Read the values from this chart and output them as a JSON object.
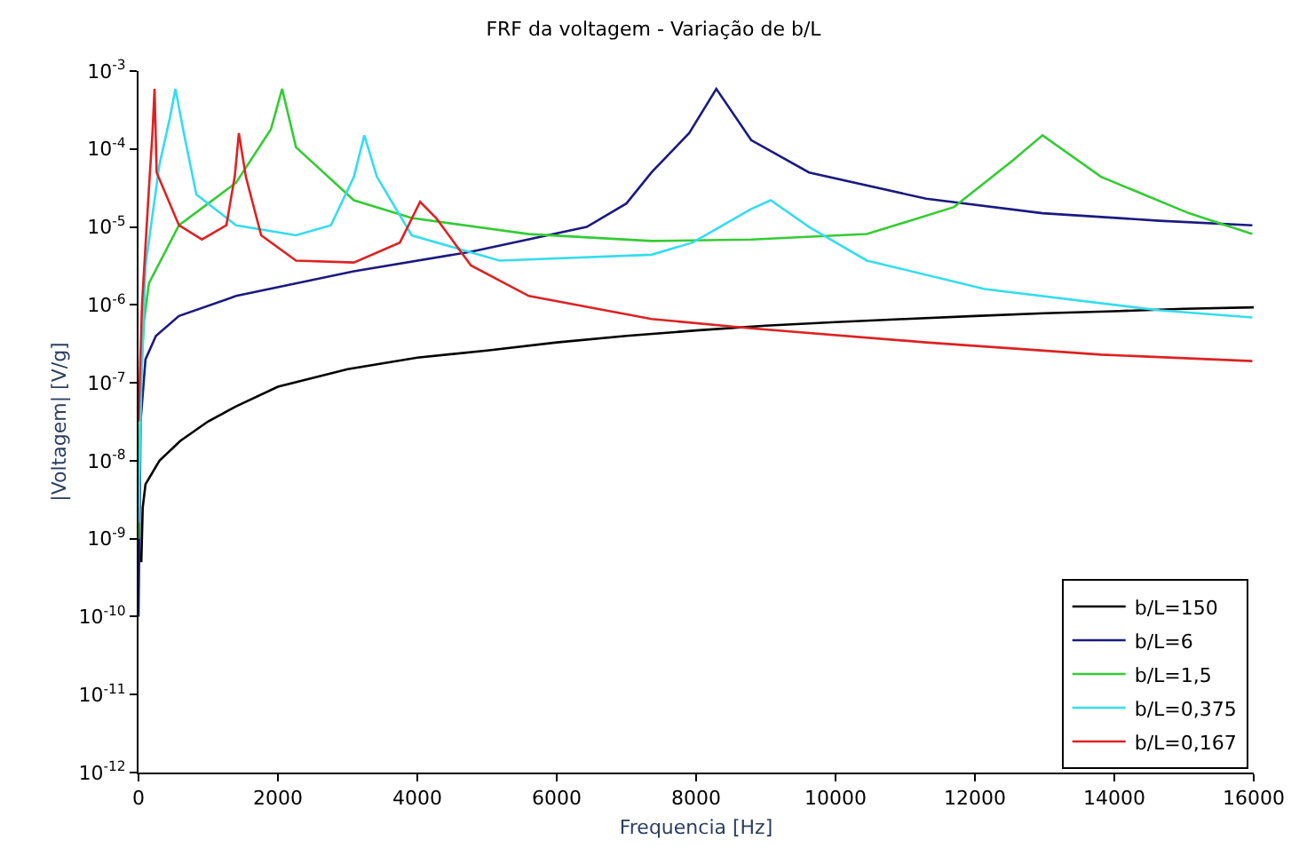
{
  "chart_data": {
    "type": "line",
    "title": "FRF da voltagem - Variação de b/L",
    "xlabel": "Frequencia [Hz]",
    "ylabel": "|Voltagem| [V/g]",
    "log": "y",
    "grid": false,
    "legend": "bottom right",
    "line_style": "solid",
    "marker": "none",
    "xlim": [
      0,
      16000
    ],
    "xticks": [
      0,
      2000,
      4000,
      6000,
      8000,
      10000,
      12000,
      14000,
      16000
    ],
    "ylim": [
      1e-12,
      0.001
    ],
    "yticks": [
      {
        "value": 1e-12,
        "label": "10$^{-12}$"
      },
      {
        "value": 1e-11,
        "label": "10$^{-11}$"
      },
      {
        "value": 1e-10,
        "label": "10$^{-10}$"
      },
      {
        "value": 1e-09,
        "label": "10$^{-9}$"
      },
      {
        "value": 1e-08,
        "label": "10$^{-8}$"
      },
      {
        "value": 1e-07,
        "label": "10$^{-7}$"
      },
      {
        "value": 1e-06,
        "label": "10$^{-6}$"
      },
      {
        "value": 1e-05,
        "label": "10$^{-5}$"
      },
      {
        "value": 0.0001,
        "label": "10$^{-4}$"
      },
      {
        "value": 0.001,
        "label": "10$^{-3}$"
      }
    ],
    "series": [
      {
        "name": "b/L=150",
        "color": "#000000",
        "x": [
          40,
          60,
          100,
          300,
          600,
          1000,
          1400,
          2000,
          3000,
          4000,
          5000,
          6000,
          7000,
          8000,
          9000,
          10000,
          11000,
          12000,
          13000,
          14000,
          15000,
          16000
        ],
        "values": [
          5e-10,
          2.5e-09,
          5e-09,
          1e-08,
          1.8e-08,
          3.2e-08,
          5e-08,
          8.9e-08,
          1.5e-07,
          2.1e-07,
          2.6e-07,
          3.3e-07,
          4e-07,
          4.7e-07,
          5.4e-07,
          6e-07,
          6.6e-07,
          7.2e-07,
          7.8e-07,
          8.3e-07,
          8.9e-07,
          9.3e-07
        ]
      },
      {
        "name": "b/L=6",
        "color": "#1a1a80",
        "x": [
          0,
          30,
          100,
          250,
          580,
          1400,
          3090,
          4770,
          6430,
          7000,
          7360,
          7900,
          8290,
          8790,
          9620,
          11300,
          12970,
          14650,
          15980
        ],
        "values": [
          1e-10,
          3.2e-08,
          2e-07,
          4e-07,
          7.2e-07,
          1.3e-06,
          2.7e-06,
          4.8e-06,
          1e-05,
          2e-05,
          5e-05,
          0.00016,
          0.00059,
          0.00013,
          5e-05,
          2.3e-05,
          1.5e-05,
          1.2e-05,
          1.05e-05
        ]
      },
      {
        "name": "b/L=1,5",
        "color": "#33cc33",
        "x": [
          0,
          30,
          80,
          150,
          580,
          1400,
          1900,
          2060,
          2260,
          3090,
          3920,
          5600,
          7360,
          8790,
          10450,
          11700,
          12550,
          12970,
          13810,
          15070,
          15980
        ],
        "values": [
          1e-09,
          1e-07,
          6.3e-07,
          1.9e-06,
          1.05e-05,
          3.7e-05,
          0.00018,
          0.00059,
          0.000105,
          2.2e-05,
          1.3e-05,
          8.1e-06,
          6.6e-06,
          6.9e-06,
          8.1e-06,
          1.8e-05,
          7.2e-05,
          0.00015,
          4.4e-05,
          1.5e-05,
          8.1e-06
        ]
      },
      {
        "name": "b/L=0,375",
        "color": "#33dded",
        "x": [
          0,
          40,
          100,
          300,
          450,
          530,
          650,
          830,
          1400,
          2260,
          2760,
          3090,
          3240,
          3420,
          3920,
          5180,
          7360,
          7950,
          8790,
          9070,
          9620,
          10450,
          12140,
          14650,
          15980
        ],
        "values": [
          1.6e-09,
          1e-07,
          3.2e-06,
          6.3e-05,
          0.00025,
          0.00059,
          0.00016,
          2.6e-05,
          1.05e-05,
          7.8e-06,
          1.05e-05,
          4.4e-05,
          0.00015,
          4.4e-05,
          7.8e-06,
          3.7e-06,
          4.4e-06,
          6.3e-06,
          1.7e-05,
          2.2e-05,
          1e-05,
          3.7e-06,
          1.6e-06,
          8.5e-07,
          6.9e-07
        ]
      },
      {
        "name": "b/L=0,167",
        "color": "#dd2222",
        "x": [
          0,
          50,
          150,
          200,
          230,
          260,
          580,
          910,
          1260,
          1380,
          1440,
          1540,
          1760,
          2260,
          3090,
          3750,
          4040,
          4270,
          4770,
          5600,
          7360,
          8790,
          11300,
          13810,
          15980
        ],
        "values": [
          3.2e-08,
          1e-06,
          3.2e-05,
          0.00016,
          0.00059,
          5e-05,
          1.05e-05,
          6.9e-06,
          1.05e-05,
          4.4e-05,
          0.00016,
          4.4e-05,
          7.8e-06,
          3.7e-06,
          3.5e-06,
          6.3e-06,
          2.1e-05,
          1.3e-05,
          3.2e-06,
          1.3e-06,
          6.6e-07,
          5e-07,
          3.3e-07,
          2.3e-07,
          1.9e-07
        ]
      }
    ]
  }
}
